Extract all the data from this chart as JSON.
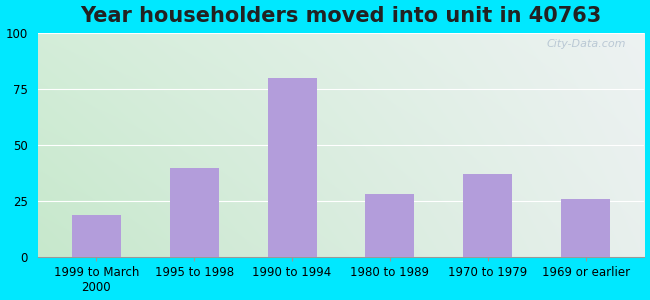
{
  "title": "Year householders moved into unit in 40763",
  "categories": [
    "1999 to March\n2000",
    "1995 to 1998",
    "1990 to 1994",
    "1980 to 1989",
    "1970 to 1979",
    "1969 or earlier"
  ],
  "values": [
    19,
    40,
    80,
    28,
    37,
    26
  ],
  "bar_color": "#b39ddb",
  "ylim": [
    0,
    100
  ],
  "yticks": [
    0,
    25,
    50,
    75,
    100
  ],
  "background_outer": "#00e8ff",
  "bg_color_topleft": "#d4edd8",
  "bg_color_topright": "#eef2f2",
  "bg_color_bottomleft": "#c8e8cc",
  "bg_color_bottomright": "#e8eeee",
  "title_fontsize": 15,
  "tick_fontsize": 8.5,
  "watermark": "City-Data.com"
}
